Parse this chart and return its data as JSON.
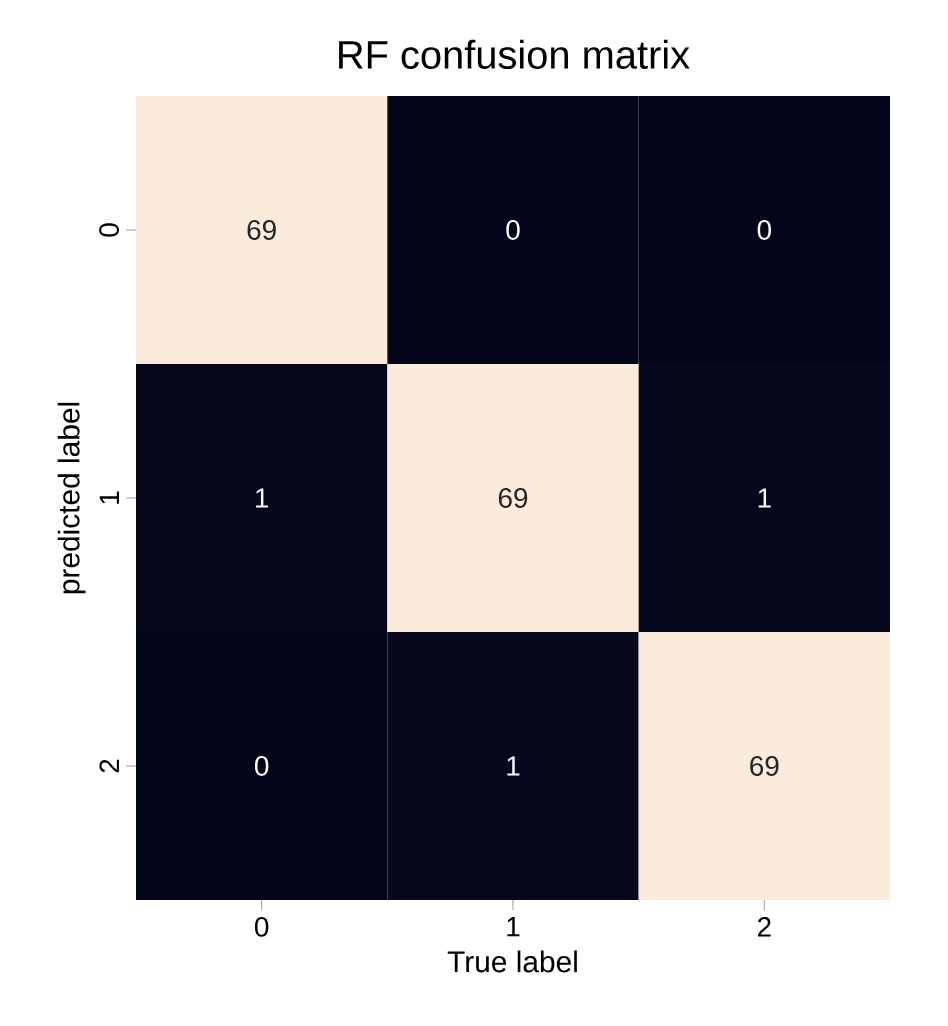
{
  "chart_data": {
    "type": "heatmap",
    "title": "RF confusion matrix",
    "xlabel": "True label",
    "ylabel": "predicted label",
    "categories": [
      "0",
      "1",
      "2"
    ],
    "y_categories": [
      "0",
      "1",
      "2"
    ],
    "cells": [
      [
        69,
        0,
        0
      ],
      [
        1,
        69,
        1
      ],
      [
        0,
        1,
        69
      ]
    ],
    "data_labels": true
  }
}
